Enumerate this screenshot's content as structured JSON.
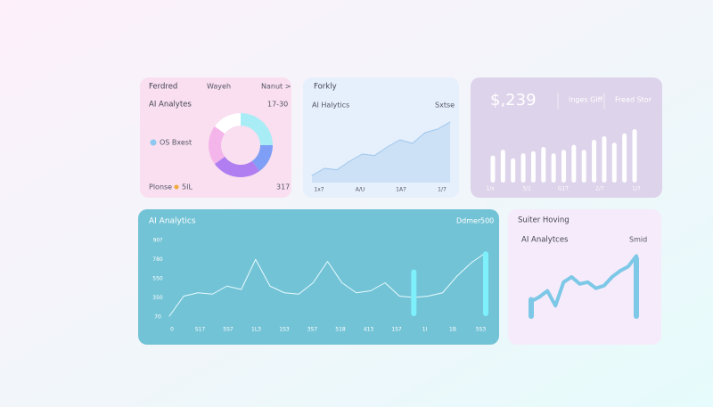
{
  "cards": [
    {
      "title": "Ferdred",
      "tabs": [
        "Wayeh",
        "Nanut >"
      ],
      "subtitle": "AI Analytes",
      "range": "17-30",
      "legend": "OS Bxest",
      "footer": [
        "Plonse",
        "5IL",
        "317"
      ],
      "donut": {
        "values": [
          25,
          15,
          25,
          20,
          15
        ],
        "colors": [
          "#a8ecf5",
          "#7f9ef5",
          "#b07ef0",
          "#f4b5ea",
          "#ffffff"
        ]
      }
    },
    {
      "title": "Forkly",
      "subtitle": "AI Halytics",
      "tag": "Sxtse",
      "x_labels": [
        "1x7",
        "A/U",
        "1A7",
        "1/7"
      ],
      "values": [
        10,
        20,
        18,
        30,
        40,
        38,
        50,
        60,
        55,
        70,
        75,
        85
      ],
      "ylim": [
        0,
        100
      ],
      "color": "#9cc7ec"
    },
    {
      "value": "$,239",
      "stats": [
        "Inges Glff",
        "Fread Stor"
      ],
      "x_labels": [
        "1/x",
        "3/1",
        "G1T",
        "2/7",
        "1/7"
      ],
      "values": [
        38,
        46,
        34,
        41,
        44,
        50,
        41,
        46,
        53,
        46,
        60,
        65,
        56,
        69,
        75
      ],
      "ylim": [
        0,
        100
      ],
      "color": "#ffffff"
    },
    {
      "title": "AI Analytics",
      "tag": "Ddmer",
      "tag2": "500",
      "y_labels": [
        "90?",
        "780",
        "550",
        "350",
        "70"
      ],
      "x_labels": [
        "0",
        "S17",
        "5S7",
        "1L3",
        "1S3",
        "3S7",
        "518",
        "413",
        "1S7",
        "1I",
        "1B",
        "5S3"
      ],
      "values": [
        0,
        30,
        35,
        33,
        45,
        40,
        85,
        45,
        35,
        33,
        50,
        82,
        50,
        35,
        38,
        50,
        30,
        28,
        30,
        35,
        60,
        80,
        95
      ],
      "bars": {
        "x": [
          17,
          22
        ],
        "values": [
          70,
          97
        ]
      },
      "ylim": [
        0,
        100
      ],
      "color": "#e8fbff",
      "bar_color": "#7df0fb"
    },
    {
      "title": "Suiter Hoving",
      "subtitle": "AI Analytces",
      "tag": "Smid",
      "values": [
        20,
        25,
        32,
        15,
        42,
        48,
        40,
        42,
        35,
        38,
        48,
        55,
        60,
        72
      ],
      "bars": {
        "x": [
          0,
          13
        ],
        "values": [
          25,
          72
        ]
      },
      "ylim": [
        0,
        100
      ],
      "color": "#7cc8e6"
    }
  ]
}
